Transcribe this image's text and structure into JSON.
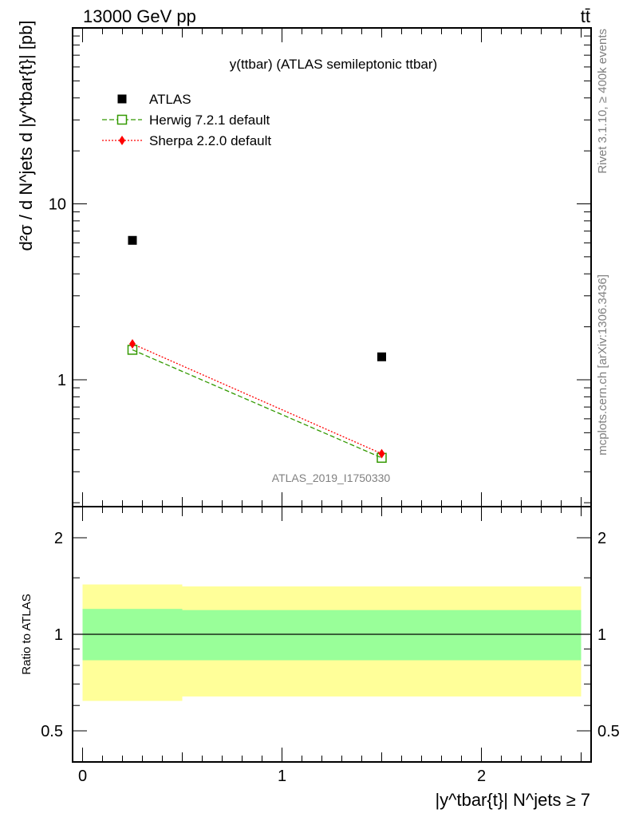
{
  "header": {
    "left": "13000 GeV pp",
    "right": "tt̄"
  },
  "side": {
    "rivet": "Rivet 3.1.10, ≥ 400k events",
    "mcplots": "mcplots.cern.ch [arXiv:1306.3436]"
  },
  "chart_data": [
    {
      "type": "scatter",
      "title": "y(ttbar) (ATLAS semileptonic ttbar)",
      "watermark": "ATLAS_2019_I1750330",
      "ylabel": "d²σ / d N^jets d |y^tbar{t}| [pb]",
      "yscale": "log",
      "ylim": [
        0.19,
        100
      ],
      "xlim": [
        -0.05,
        2.55
      ],
      "ytick_labels": [
        "1",
        "10"
      ],
      "legend_position": "top-left",
      "series": [
        {
          "name": "ATLAS",
          "color": "#000000",
          "marker": "filled-square",
          "x": [
            0.25,
            1.5
          ],
          "xerr": [
            0.25,
            0.75
          ],
          "y": [
            6.2,
            1.35
          ]
        },
        {
          "name": "Herwig 7.2.1 default",
          "color": "#339900",
          "marker": "open-square",
          "line": "dashed",
          "x": [
            0.25,
            1.5
          ],
          "y": [
            1.48,
            0.36
          ]
        },
        {
          "name": "Sherpa 2.2.0 default",
          "color": "#ff0000",
          "marker": "diamond",
          "line": "dotted",
          "x": [
            0.25,
            1.5
          ],
          "y": [
            1.6,
            0.38
          ]
        }
      ]
    },
    {
      "type": "area",
      "ylabel": "Ratio to ATLAS",
      "xlabel": "|y^tbar{t}| N^jets ≥ 7",
      "yscale": "log",
      "ylim": [
        0.4,
        2.5
      ],
      "xlim": [
        -0.05,
        2.55
      ],
      "xtick_labels": [
        "0",
        "1",
        "2"
      ],
      "ytick_labels": [
        "0.5",
        "1",
        "2"
      ],
      "reference": 1,
      "bands": [
        {
          "name": "stat+syst (yellow)",
          "color": "#ffff99",
          "bins": [
            {
              "x0": 0.0,
              "x1": 0.5,
              "lo": 0.62,
              "hi": 1.43
            },
            {
              "x0": 0.5,
              "x1": 2.5,
              "lo": 0.64,
              "hi": 1.41
            }
          ]
        },
        {
          "name": "stat (green)",
          "color": "#99ff99",
          "bins": [
            {
              "x0": 0.0,
              "x1": 0.5,
              "lo": 0.83,
              "hi": 1.2
            },
            {
              "x0": 0.5,
              "x1": 2.5,
              "lo": 0.83,
              "hi": 1.19
            }
          ]
        }
      ]
    }
  ]
}
